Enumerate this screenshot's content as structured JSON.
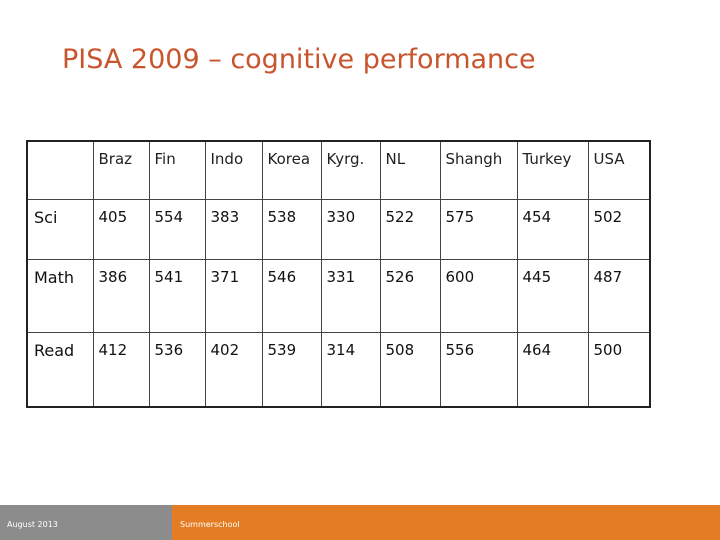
{
  "slide": {
    "title": "PISA 2009 – cognitive performance"
  },
  "table": {
    "corner": "",
    "columns": [
      "Braz",
      "Fin",
      "Indo",
      "Korea",
      "Kyrg.",
      "NL",
      "Shangh",
      "Turkey",
      "USA"
    ],
    "rows": [
      {
        "label": "Sci",
        "values": [
          "405",
          "554",
          "383",
          "538",
          "330",
          "522",
          "575",
          "454",
          "502"
        ]
      },
      {
        "label": "Math",
        "values": [
          "386",
          "541",
          "371",
          "546",
          "331",
          "526",
          "600",
          "445",
          "487"
        ]
      },
      {
        "label": "Read",
        "values": [
          "412",
          "536",
          "402",
          "539",
          "314",
          "508",
          "556",
          "464",
          "500"
        ]
      }
    ]
  },
  "footer": {
    "left": "August 2013",
    "middle": "Summerschool",
    "colors": {
      "grey": "#8c8c8c",
      "orange": "#e37c22"
    }
  },
  "colors": {
    "title": "#c8552d"
  }
}
